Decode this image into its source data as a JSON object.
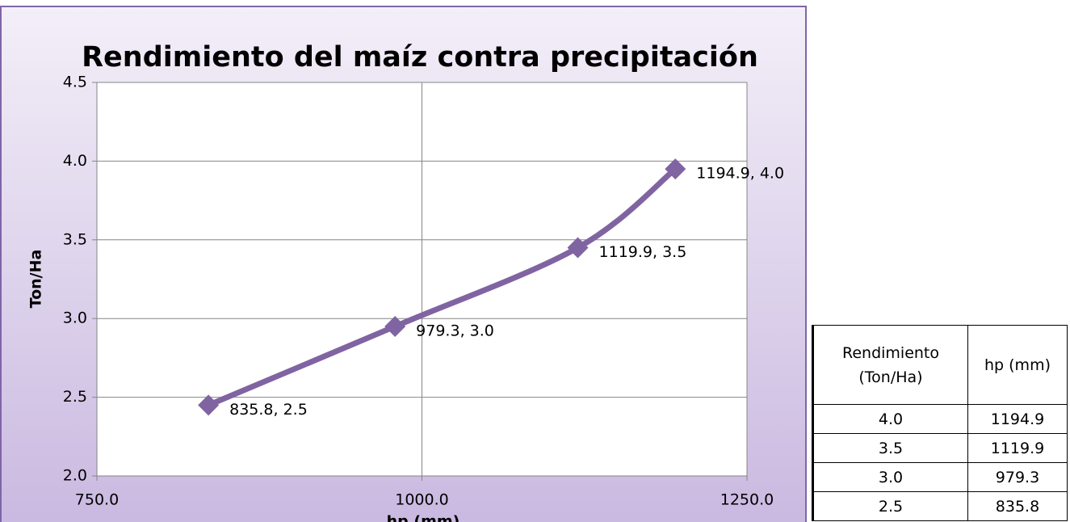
{
  "chart_data": {
    "type": "line",
    "title": "Rendimiento del maíz contra precipitación",
    "x_label": "hp (mm)",
    "y_label": "Ton/Ha",
    "x": [
      835.8,
      979.3,
      1119.9,
      1194.9
    ],
    "values": [
      2.45,
      2.95,
      3.45,
      3.95
    ],
    "value_labels": [
      "835.8, 2.5",
      "979.3, 3.0",
      "1119.9, 3.5",
      "1194.9, 4.0"
    ],
    "color": "#8064a2",
    "xlim": [
      750,
      1250
    ],
    "xticks": [
      {
        "value": 750,
        "label": "750.0"
      },
      {
        "value": 1000,
        "label": "1000.0"
      },
      {
        "value": 1250,
        "label": "1250.0"
      }
    ],
    "ylim": [
      2,
      4.5
    ],
    "yticks": [
      {
        "value": 2,
        "label": "2.0"
      },
      2.5,
      {
        "value": 3,
        "label": "3.0"
      },
      3.5,
      {
        "value": 4,
        "label": "4.0"
      },
      4.5
    ],
    "grid": true
  },
  "table": {
    "header": [
      "Rendimiento (Ton/Ha)",
      "hp (mm)"
    ],
    "rows": [
      [
        "4.0",
        "1194.9"
      ],
      [
        "3.5",
        "1119.9"
      ],
      [
        "3.0",
        "979.3"
      ],
      [
        "2.5",
        "835.8"
      ]
    ]
  }
}
